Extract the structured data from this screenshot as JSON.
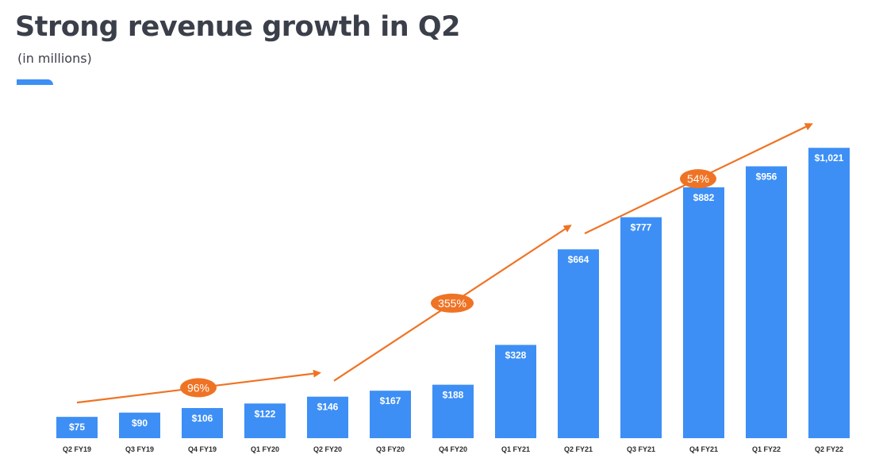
{
  "header": {
    "title": "Strong revenue growth in Q2",
    "subtitle": "(in millions)"
  },
  "colors": {
    "bar": "#3d8ff5",
    "accent": "#3d8ff5",
    "arrow": "#ef7324",
    "title": "#3b3f4a"
  },
  "chart_data": {
    "type": "bar",
    "title": "Strong revenue growth in Q2",
    "subtitle": "(in millions)",
    "xlabel": "",
    "ylabel": "",
    "ylim": [
      0,
      1150
    ],
    "grid": false,
    "categories": [
      "Q2 FY19",
      "Q3 FY19",
      "Q4 FY19",
      "Q1 FY20",
      "Q2 FY20",
      "Q3 FY20",
      "Q4 FY20",
      "Q1 FY21",
      "Q2 FY21",
      "Q3 FY21",
      "Q4 FY21",
      "Q1 FY22",
      "Q2 FY22"
    ],
    "values": [
      75,
      90,
      106,
      122,
      146,
      167,
      188,
      328,
      664,
      777,
      882,
      956,
      1021
    ],
    "data_labels": [
      "$75",
      "$90",
      "$106",
      "$122",
      "$146",
      "$167",
      "$188",
      "$328",
      "$664",
      "$777",
      "$882",
      "$956",
      "$1,021"
    ],
    "annotations": [
      {
        "label": "96%",
        "from": "Q2 FY19",
        "to": "Q2 FY20"
      },
      {
        "label": "355%",
        "from": "Q2 FY20",
        "to": "Q2 FY21"
      },
      {
        "label": "54%",
        "from": "Q2 FY21",
        "to": "Q2 FY22"
      }
    ]
  }
}
